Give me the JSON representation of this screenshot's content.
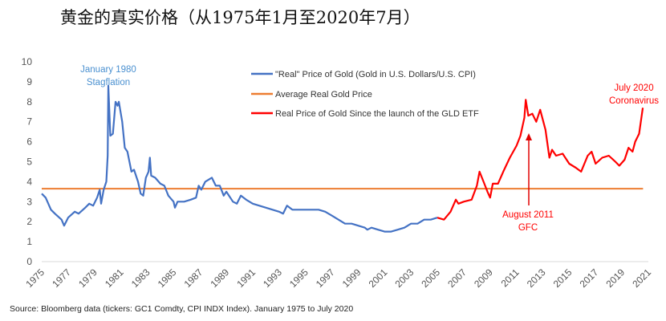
{
  "title": "黄金的真实价格（从1975年1月至2020年7月）",
  "source": "Source: Bloomberg data (tickers: GC1 Comdty, CPI INDX Index). January 1975 to July 2020",
  "chart_data": {
    "type": "line",
    "title": "黄金的真实价格（从1975年1月至2020年7月）",
    "xlabel": "",
    "ylabel": "",
    "xlim": [
      1975,
      2021
    ],
    "ylim": [
      0,
      10
    ],
    "y_ticks": [
      "0",
      "1",
      "2",
      "3",
      "4",
      "5",
      "6",
      "7",
      "8",
      "9",
      "10"
    ],
    "x_ticks": [
      "1975",
      "1977",
      "1979",
      "1981",
      "1983",
      "1985",
      "1987",
      "1989",
      "1991",
      "1993",
      "1995",
      "1997",
      "1999",
      "2001",
      "2003",
      "2005",
      "2007",
      "2009",
      "2011",
      "2013",
      "2015",
      "2017",
      "2019",
      "2021"
    ],
    "grid": false,
    "legend_position": "top-center",
    "series": [
      {
        "name": "\"Real\" Price of Gold (Gold in U.S. Dollars/U.S. CPI)",
        "color": "#4472c4",
        "x": [
          1975.0,
          1975.3,
          1975.7,
          1976.0,
          1976.5,
          1976.7,
          1977.0,
          1977.5,
          1977.8,
          1978.3,
          1978.6,
          1978.9,
          1979.2,
          1979.4,
          1979.5,
          1979.7,
          1979.9,
          1980.0,
          1980.05,
          1980.2,
          1980.4,
          1980.6,
          1980.75,
          1980.85,
          1981.1,
          1981.3,
          1981.5,
          1981.8,
          1982.0,
          1982.3,
          1982.5,
          1982.7,
          1982.9,
          1983.1,
          1983.2,
          1983.3,
          1983.6,
          1984.0,
          1984.3,
          1984.6,
          1985.0,
          1985.1,
          1985.3,
          1985.8,
          1986.3,
          1986.7,
          1986.9,
          1987.1,
          1987.4,
          1987.9,
          1988.2,
          1988.5,
          1988.8,
          1989.0,
          1989.5,
          1989.8,
          1990.1,
          1990.5,
          1991.0,
          1991.5,
          1992.0,
          1992.5,
          1993.0,
          1993.3,
          1993.6,
          1994.0,
          1994.5,
          1995.0,
          1995.5,
          1996.0,
          1996.5,
          1997.0,
          1997.5,
          1998.0,
          1998.5,
          1999.0,
          1999.5,
          1999.7,
          2000.0,
          2000.5,
          2001.0,
          2001.5,
          2002.0,
          2002.5,
          2003.0,
          2003.5,
          2004.0,
          2004.5,
          2005.0
        ],
        "values": [
          3.4,
          3.2,
          2.6,
          2.4,
          2.1,
          1.8,
          2.2,
          2.5,
          2.4,
          2.7,
          2.9,
          2.8,
          3.2,
          3.6,
          2.9,
          3.6,
          4.0,
          5.3,
          8.8,
          6.3,
          6.4,
          8.0,
          7.8,
          8.0,
          7.0,
          5.7,
          5.5,
          4.5,
          4.6,
          4.0,
          3.4,
          3.3,
          4.2,
          4.5,
          5.2,
          4.3,
          4.2,
          3.9,
          3.8,
          3.3,
          3.0,
          2.7,
          3.0,
          3.0,
          3.1,
          3.2,
          3.8,
          3.6,
          4.0,
          4.2,
          3.8,
          3.8,
          3.3,
          3.5,
          3.0,
          2.9,
          3.3,
          3.1,
          2.9,
          2.8,
          2.7,
          2.6,
          2.5,
          2.4,
          2.8,
          2.6,
          2.6,
          2.6,
          2.6,
          2.6,
          2.5,
          2.3,
          2.1,
          1.9,
          1.9,
          1.8,
          1.7,
          1.6,
          1.7,
          1.6,
          1.5,
          1.5,
          1.6,
          1.7,
          1.9,
          1.9,
          2.1,
          2.1,
          2.2
        ]
      },
      {
        "name": "Average Real Gold Price",
        "color": "#ed7d31",
        "x": [
          1975.0,
          2020.6
        ],
        "values": [
          3.65,
          3.65
        ]
      },
      {
        "name": "Real Price of Gold Since the launch of the GLD ETF",
        "color": "#ff0000",
        "x": [
          2005.0,
          2005.5,
          2006.0,
          2006.4,
          2006.6,
          2007.0,
          2007.6,
          2008.0,
          2008.2,
          2008.5,
          2008.8,
          2009.0,
          2009.2,
          2009.6,
          2010.0,
          2010.5,
          2011.0,
          2011.3,
          2011.6,
          2011.7,
          2011.9,
          2012.2,
          2012.5,
          2012.8,
          2013.2,
          2013.5,
          2013.7,
          2014.0,
          2014.5,
          2015.0,
          2015.5,
          2015.9,
          2016.4,
          2016.7,
          2017.0,
          2017.5,
          2018.0,
          2018.5,
          2018.8,
          2019.2,
          2019.5,
          2019.8,
          2020.0,
          2020.3,
          2020.58
        ],
        "values": [
          2.2,
          2.1,
          2.5,
          3.1,
          2.9,
          3.0,
          3.1,
          3.8,
          4.5,
          4.0,
          3.5,
          3.2,
          3.9,
          3.9,
          4.5,
          5.2,
          5.8,
          6.3,
          7.2,
          8.1,
          7.3,
          7.4,
          7.0,
          7.6,
          6.6,
          5.2,
          5.6,
          5.3,
          5.4,
          4.9,
          4.7,
          4.5,
          5.3,
          5.5,
          4.9,
          5.2,
          5.3,
          5.0,
          4.8,
          5.1,
          5.7,
          5.5,
          6.0,
          6.4,
          7.7
        ]
      }
    ],
    "annotations": [
      {
        "text": [
          "January 1980",
          "Stagflation"
        ],
        "color": "#4a90d0"
      },
      {
        "text": [
          "August 2011",
          "GFC"
        ],
        "color": "#ff0000"
      },
      {
        "text": [
          "July 2020",
          "Coronavirus"
        ],
        "color": "#ff0000"
      }
    ]
  }
}
